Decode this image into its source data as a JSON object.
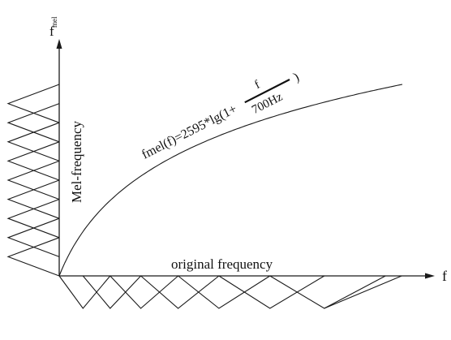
{
  "labels": {
    "y_axis_main": "f",
    "y_axis_sub": "mel",
    "x_axis": "f",
    "vertical_axis_caption": "Mel-frequency",
    "horizontal_axis_caption": "original frequency"
  },
  "formula": {
    "prefix": "fmel(f)=2595*lg(1+",
    "numerator": "f",
    "denominator": "700Hz",
    "suffix": ")"
  },
  "diagram": {
    "mel_filter_count": 9,
    "linear_filter_edges": [
      0.0,
      0.07,
      0.15,
      0.24,
      0.35,
      0.47,
      0.62,
      0.78,
      0.96
    ],
    "mel_curve_constant": 2595,
    "mel_curve_reference_hz": 700
  }
}
